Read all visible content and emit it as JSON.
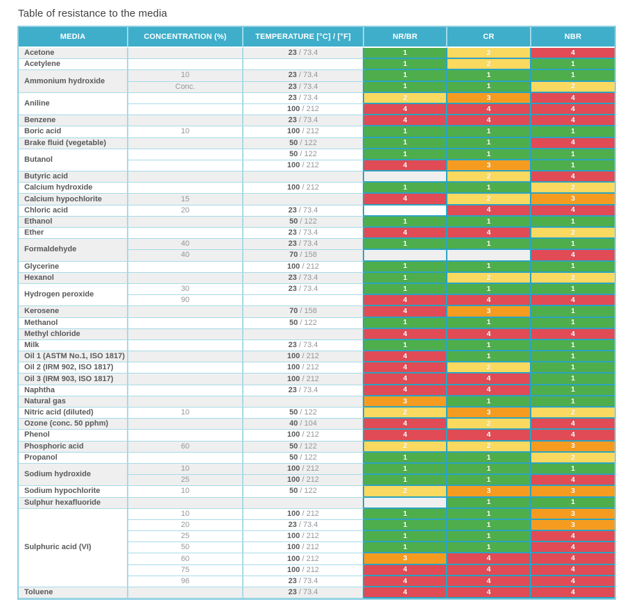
{
  "title": "Table of resistance to the media",
  "table": {
    "columns": [
      "MEDIA",
      "CONCENTRATION (%)",
      "TEMPERATURE [°C] / [°F]",
      "NR/BR",
      "CR",
      "NBR"
    ],
    "rating_columns": [
      "NR/BR",
      "CR",
      "NBR"
    ],
    "header_bg": "#3FAECA",
    "stripe_colors": {
      "gray": "#EFEFEF",
      "white": "#FFFFFF"
    },
    "rating_colors": {
      "1": "#4FAE4C",
      "2": "#F9D960",
      "3": "#F59C20",
      "4": "#E04B55"
    },
    "groups": [
      {
        "media": "Acetone",
        "rows": [
          {
            "conc": "",
            "temp_c": "23",
            "temp_f": "73.4",
            "ratings": [
              "1",
              "2",
              "4"
            ]
          }
        ]
      },
      {
        "media": "Acetylene",
        "rows": [
          {
            "conc": "",
            "temp_c": "",
            "temp_f": "",
            "ratings": [
              "1",
              "2",
              "1"
            ]
          }
        ]
      },
      {
        "media": "Ammonium hydroxide",
        "rows": [
          {
            "conc": "10",
            "temp_c": "23",
            "temp_f": "73.4",
            "ratings": [
              "1",
              "1",
              "1"
            ]
          },
          {
            "conc": "Conc.",
            "temp_c": "23",
            "temp_f": "73.4",
            "ratings": [
              "1",
              "1",
              "2"
            ]
          }
        ]
      },
      {
        "media": "Aniline",
        "rows": [
          {
            "conc": "",
            "temp_c": "23",
            "temp_f": "73.4",
            "ratings": [
              "2",
              "3",
              "4"
            ]
          },
          {
            "conc": "",
            "temp_c": "100",
            "temp_f": "212",
            "ratings": [
              "4",
              "4",
              "4"
            ]
          }
        ]
      },
      {
        "media": "Benzene",
        "rows": [
          {
            "conc": "",
            "temp_c": "23",
            "temp_f": "73.4",
            "ratings": [
              "4",
              "4",
              "4"
            ]
          }
        ]
      },
      {
        "media": "Boric acid",
        "rows": [
          {
            "conc": "10",
            "temp_c": "100",
            "temp_f": "212",
            "ratings": [
              "1",
              "1",
              "1"
            ]
          }
        ]
      },
      {
        "media": "Brake fluid (vegetable)",
        "rows": [
          {
            "conc": "",
            "temp_c": "50",
            "temp_f": "122",
            "ratings": [
              "1",
              "1",
              "4"
            ]
          }
        ]
      },
      {
        "media": "Butanol",
        "rows": [
          {
            "conc": "",
            "temp_c": "50",
            "temp_f": "122",
            "ratings": [
              "1",
              "1",
              "1"
            ]
          },
          {
            "conc": "",
            "temp_c": "100",
            "temp_f": "212",
            "ratings": [
              "4",
              "3",
              "1"
            ]
          }
        ]
      },
      {
        "media": "Butyric acid",
        "rows": [
          {
            "conc": "",
            "temp_c": "",
            "temp_f": "",
            "ratings": [
              "",
              "2",
              "4"
            ]
          }
        ]
      },
      {
        "media": "Calcium hydroxide",
        "rows": [
          {
            "conc": "",
            "temp_c": "100",
            "temp_f": "212",
            "ratings": [
              "1",
              "1",
              "2"
            ]
          }
        ]
      },
      {
        "media": "Calcium hypochlorite",
        "rows": [
          {
            "conc": "15",
            "temp_c": "",
            "temp_f": "",
            "ratings": [
              "4",
              "2",
              "3"
            ]
          }
        ]
      },
      {
        "media": "Chloric acid",
        "rows": [
          {
            "conc": "20",
            "temp_c": "23",
            "temp_f": "73.4",
            "ratings": [
              "",
              "4",
              "4"
            ]
          }
        ]
      },
      {
        "media": "Ethanol",
        "rows": [
          {
            "conc": "",
            "temp_c": "50",
            "temp_f": "122",
            "ratings": [
              "1",
              "1",
              "1"
            ]
          }
        ]
      },
      {
        "media": "Ether",
        "rows": [
          {
            "conc": "",
            "temp_c": "23",
            "temp_f": "73.4",
            "ratings": [
              "4",
              "4",
              "2"
            ]
          }
        ]
      },
      {
        "media": "Formaldehyde",
        "rows": [
          {
            "conc": "40",
            "temp_c": "23",
            "temp_f": "73.4",
            "ratings": [
              "1",
              "1",
              "1"
            ]
          },
          {
            "conc": "40",
            "temp_c": "70",
            "temp_f": "158",
            "ratings": [
              "",
              "",
              "4"
            ]
          }
        ]
      },
      {
        "media": "Glycerine",
        "rows": [
          {
            "conc": "",
            "temp_c": "100",
            "temp_f": "212",
            "ratings": [
              "1",
              "1",
              "1"
            ]
          }
        ]
      },
      {
        "media": "Hexanol",
        "rows": [
          {
            "conc": "",
            "temp_c": "23",
            "temp_f": "73.4",
            "ratings": [
              "1",
              "2",
              "2"
            ]
          }
        ]
      },
      {
        "media": "Hydrogen peroxide",
        "rows": [
          {
            "conc": "30",
            "temp_c": "23",
            "temp_f": "73.4",
            "ratings": [
              "1",
              "1",
              "1"
            ]
          },
          {
            "conc": "90",
            "temp_c": "",
            "temp_f": "",
            "ratings": [
              "4",
              "4",
              "4"
            ]
          }
        ]
      },
      {
        "media": "Kerosene",
        "rows": [
          {
            "conc": "",
            "temp_c": "70",
            "temp_f": "158",
            "ratings": [
              "4",
              "3",
              "1"
            ]
          }
        ]
      },
      {
        "media": "Methanol",
        "rows": [
          {
            "conc": "",
            "temp_c": "50",
            "temp_f": "122",
            "ratings": [
              "1",
              "1",
              "1"
            ]
          }
        ]
      },
      {
        "media": "Methyl chloride",
        "rows": [
          {
            "conc": "",
            "temp_c": "",
            "temp_f": "",
            "ratings": [
              "4",
              "4",
              "4"
            ]
          }
        ]
      },
      {
        "media": "Milk",
        "rows": [
          {
            "conc": "",
            "temp_c": "23",
            "temp_f": "73.4",
            "ratings": [
              "1",
              "1",
              "1"
            ]
          }
        ]
      },
      {
        "media": "Oil 1 (ASTM No.1, ISO 1817)",
        "rows": [
          {
            "conc": "",
            "temp_c": "100",
            "temp_f": "212",
            "ratings": [
              "4",
              "1",
              "1"
            ]
          }
        ]
      },
      {
        "media": "Oil 2 (IRM 902, ISO 1817)",
        "rows": [
          {
            "conc": "",
            "temp_c": "100",
            "temp_f": "212",
            "ratings": [
              "4",
              "2",
              "1"
            ]
          }
        ]
      },
      {
        "media": "Oil 3 (IRM 903, ISO 1817)",
        "rows": [
          {
            "conc": "",
            "temp_c": "100",
            "temp_f": "212",
            "ratings": [
              "4",
              "4",
              "1"
            ]
          }
        ]
      },
      {
        "media": "Naphtha",
        "rows": [
          {
            "conc": "",
            "temp_c": "23",
            "temp_f": "73.4",
            "ratings": [
              "4",
              "4",
              "1"
            ]
          }
        ]
      },
      {
        "media": "Natural gas",
        "rows": [
          {
            "conc": "",
            "temp_c": "",
            "temp_f": "",
            "ratings": [
              "3",
              "1",
              "1"
            ]
          }
        ]
      },
      {
        "media": "Nitric acid (diluted)",
        "rows": [
          {
            "conc": "10",
            "temp_c": "50",
            "temp_f": "122",
            "ratings": [
              "2",
              "3",
              "2"
            ]
          }
        ]
      },
      {
        "media": "Ozone (conc. 50 pphm)",
        "rows": [
          {
            "conc": "",
            "temp_c": "40",
            "temp_f": "104",
            "ratings": [
              "4",
              "2",
              "4"
            ]
          }
        ]
      },
      {
        "media": "Phenol",
        "rows": [
          {
            "conc": "",
            "temp_c": "100",
            "temp_f": "212",
            "ratings": [
              "4",
              "4",
              "4"
            ]
          }
        ]
      },
      {
        "media": "Phosphoric acid",
        "rows": [
          {
            "conc": "60",
            "temp_c": "50",
            "temp_f": "122",
            "ratings": [
              "2",
              "2",
              "3"
            ]
          }
        ]
      },
      {
        "media": "Propanol",
        "rows": [
          {
            "conc": "",
            "temp_c": "50",
            "temp_f": "122",
            "ratings": [
              "1",
              "1",
              "2"
            ]
          }
        ]
      },
      {
        "media": "Sodium hydroxide",
        "rows": [
          {
            "conc": "10",
            "temp_c": "100",
            "temp_f": "212",
            "ratings": [
              "1",
              "1",
              "1"
            ]
          },
          {
            "conc": "25",
            "temp_c": "100",
            "temp_f": "212",
            "ratings": [
              "1",
              "1",
              "4"
            ]
          }
        ]
      },
      {
        "media": "Sodium hypochlorite",
        "rows": [
          {
            "conc": "10",
            "temp_c": "50",
            "temp_f": "122",
            "ratings": [
              "2",
              "3",
              "3"
            ]
          }
        ]
      },
      {
        "media": "Sulphur hexafluoride",
        "rows": [
          {
            "conc": "",
            "temp_c": "",
            "temp_f": "",
            "ratings": [
              "",
              "1",
              "1"
            ]
          }
        ]
      },
      {
        "media": "Sulphuric acid (VI)",
        "rows": [
          {
            "conc": "10",
            "temp_c": "100",
            "temp_f": "212",
            "ratings": [
              "1",
              "1",
              "3"
            ]
          },
          {
            "conc": "20",
            "temp_c": "23",
            "temp_f": "73.4",
            "ratings": [
              "1",
              "1",
              "3"
            ]
          },
          {
            "conc": "25",
            "temp_c": "100",
            "temp_f": "212",
            "ratings": [
              "1",
              "1",
              "4"
            ]
          },
          {
            "conc": "50",
            "temp_c": "100",
            "temp_f": "212",
            "ratings": [
              "1",
              "1",
              "4"
            ]
          },
          {
            "conc": "60",
            "temp_c": "100",
            "temp_f": "212",
            "ratings": [
              "3",
              "4",
              "4"
            ]
          },
          {
            "conc": "75",
            "temp_c": "100",
            "temp_f": "212",
            "ratings": [
              "4",
              "4",
              "4"
            ]
          },
          {
            "conc": "96",
            "temp_c": "23",
            "temp_f": "73.4",
            "ratings": [
              "4",
              "4",
              "4"
            ]
          }
        ]
      },
      {
        "media": "Toluene",
        "rows": [
          {
            "conc": "",
            "temp_c": "23",
            "temp_f": "73.4",
            "ratings": [
              "4",
              "4",
              "4"
            ]
          }
        ]
      }
    ]
  }
}
